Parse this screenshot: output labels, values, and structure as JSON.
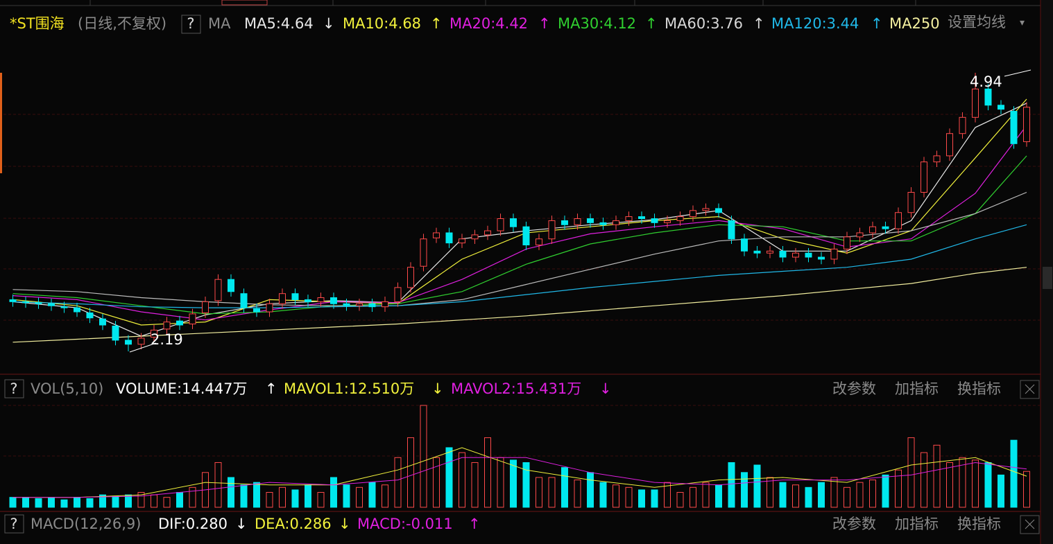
{
  "header": {
    "symbol": "*ST围海",
    "period": "(日线,不复权)",
    "help": "?",
    "indicator": "MA",
    "items": [
      {
        "label": "MA5:4.64",
        "trend": "↓"
      },
      {
        "label": "MA10:4.68",
        "trend": "↑"
      },
      {
        "label": "MA20:4.42",
        "trend": "↑"
      },
      {
        "label": "MA30:4.12",
        "trend": "↑"
      },
      {
        "label": "MA60:3.76",
        "trend": "↑"
      },
      {
        "label": "MA120:3.44",
        "trend": "↑"
      },
      {
        "label": "MA250"
      }
    ],
    "settings": "设置均线",
    "dropdown": "▾"
  },
  "volume_panel": {
    "help": "?",
    "indicator": "VOL(5,10)",
    "items": [
      {
        "label": "VOLUME:14.447万",
        "trend": "↑"
      },
      {
        "label": "MAVOL1:12.510万",
        "trend": "↓"
      },
      {
        "label": "MAVOL2:15.431万",
        "trend": "↓"
      }
    ],
    "buttons": [
      "改参数",
      "加指标",
      "换指标"
    ]
  },
  "macd_panel": {
    "help": "?",
    "indicator": "MACD(12,26,9)",
    "items": [
      {
        "label": "DIF:0.280",
        "trend": "↓"
      },
      {
        "label": "DEA:0.286",
        "trend": "↓"
      },
      {
        "label": "MACD:-0.011",
        "trend": "↑"
      }
    ],
    "buttons": [
      "改参数",
      "加指标",
      "换指标"
    ]
  },
  "chart_data": {
    "type": "candlestick",
    "up_color": "#ff4a4a",
    "down_color": "#00e8ee",
    "candles": {
      "open": [
        2.7,
        2.68,
        2.67,
        2.66,
        2.63,
        2.62,
        2.57,
        2.51,
        2.44,
        2.3,
        2.26,
        2.33,
        2.41,
        2.49,
        2.46,
        2.57,
        2.69,
        2.9,
        2.76,
        2.61,
        2.58,
        2.66,
        2.76,
        2.7,
        2.68,
        2.72,
        2.66,
        2.64,
        2.66,
        2.63,
        2.68,
        2.82,
        3.03,
        3.31,
        3.36,
        3.26,
        3.3,
        3.34,
        3.38,
        3.5,
        3.42,
        3.24,
        3.3,
        3.48,
        3.44,
        3.5,
        3.46,
        3.44,
        3.48,
        3.52,
        3.5,
        3.46,
        3.48,
        3.52,
        3.58,
        3.6,
        3.48,
        3.3,
        3.18,
        3.16,
        3.18,
        3.12,
        3.16,
        3.12,
        3.1,
        3.2,
        3.32,
        3.36,
        3.42,
        3.4,
        3.56,
        3.76,
        4.06,
        4.12,
        4.34,
        4.5,
        4.78,
        4.62,
        4.56,
        4.26
      ],
      "high": [
        2.75,
        2.73,
        2.72,
        2.71,
        2.68,
        2.67,
        2.62,
        2.56,
        2.49,
        2.35,
        2.37,
        2.45,
        2.53,
        2.54,
        2.61,
        2.73,
        2.95,
        2.95,
        2.81,
        2.66,
        2.71,
        2.81,
        2.81,
        2.75,
        2.77,
        2.77,
        2.71,
        2.71,
        2.71,
        2.73,
        2.87,
        3.07,
        3.35,
        3.41,
        3.41,
        3.35,
        3.39,
        3.43,
        3.55,
        3.55,
        3.47,
        3.35,
        3.53,
        3.53,
        3.55,
        3.55,
        3.51,
        3.53,
        3.57,
        3.57,
        3.55,
        3.53,
        3.57,
        3.63,
        3.65,
        3.65,
        3.53,
        3.35,
        3.23,
        3.23,
        3.23,
        3.21,
        3.21,
        3.17,
        3.25,
        3.37,
        3.41,
        3.47,
        3.47,
        3.61,
        3.81,
        4.11,
        4.17,
        4.39,
        4.55,
        4.94,
        4.83,
        4.67,
        4.61,
        4.65
      ],
      "low": [
        2.63,
        2.62,
        2.61,
        2.59,
        2.57,
        2.53,
        2.47,
        2.4,
        2.25,
        2.19,
        2.21,
        2.28,
        2.36,
        2.4,
        2.41,
        2.52,
        2.64,
        2.73,
        2.57,
        2.53,
        2.53,
        2.61,
        2.65,
        2.63,
        2.63,
        2.61,
        2.59,
        2.59,
        2.58,
        2.58,
        2.63,
        2.77,
        2.98,
        3.26,
        3.21,
        3.21,
        3.25,
        3.29,
        3.33,
        3.37,
        3.19,
        3.19,
        3.25,
        3.39,
        3.39,
        3.41,
        3.39,
        3.39,
        3.43,
        3.45,
        3.41,
        3.41,
        3.43,
        3.47,
        3.53,
        3.51,
        3.25,
        3.13,
        3.11,
        3.11,
        3.07,
        3.07,
        3.07,
        3.05,
        3.05,
        3.15,
        3.27,
        3.31,
        3.35,
        3.35,
        3.51,
        3.71,
        4.01,
        4.07,
        4.29,
        4.45,
        4.57,
        4.53,
        4.19,
        4.21
      ],
      "close": [
        2.68,
        2.67,
        2.66,
        2.64,
        2.62,
        2.58,
        2.52,
        2.45,
        2.3,
        2.26,
        2.32,
        2.4,
        2.48,
        2.45,
        2.56,
        2.68,
        2.9,
        2.78,
        2.62,
        2.58,
        2.66,
        2.76,
        2.7,
        2.68,
        2.72,
        2.66,
        2.64,
        2.66,
        2.63,
        2.68,
        2.82,
        3.02,
        3.3,
        3.36,
        3.26,
        3.3,
        3.34,
        3.38,
        3.5,
        3.42,
        3.24,
        3.3,
        3.48,
        3.44,
        3.5,
        3.46,
        3.44,
        3.48,
        3.52,
        3.5,
        3.46,
        3.48,
        3.52,
        3.58,
        3.6,
        3.56,
        3.3,
        3.18,
        3.16,
        3.18,
        3.12,
        3.16,
        3.12,
        3.1,
        3.2,
        3.32,
        3.36,
        3.42,
        3.4,
        3.56,
        3.76,
        4.06,
        4.12,
        4.34,
        4.5,
        4.78,
        4.62,
        4.58,
        4.24,
        4.6
      ]
    },
    "ma_x": [
      0,
      5,
      10,
      15,
      20,
      25,
      30,
      35,
      40,
      45,
      50,
      55,
      60,
      65,
      70,
      75,
      79
    ],
    "moving_averages": [
      {
        "color": "#e8e8e8",
        "values": [
          2.68,
          2.62,
          2.34,
          2.55,
          2.66,
          2.69,
          2.67,
          3.3,
          3.38,
          3.44,
          3.49,
          3.58,
          3.18,
          3.18,
          3.48,
          4.4,
          4.64
        ]
      },
      {
        "color": "#f2f23c",
        "values": [
          2.7,
          2.64,
          2.45,
          2.48,
          2.7,
          2.68,
          2.66,
          3.1,
          3.36,
          3.42,
          3.48,
          3.52,
          3.3,
          3.16,
          3.38,
          4.1,
          4.68
        ]
      },
      {
        "color": "#e020e0",
        "values": [
          2.74,
          2.7,
          2.58,
          2.5,
          2.6,
          2.68,
          2.67,
          2.9,
          3.2,
          3.35,
          3.42,
          3.48,
          3.4,
          3.22,
          3.3,
          3.75,
          4.42
        ]
      },
      {
        "color": "#30d030",
        "values": [
          2.76,
          2.72,
          2.64,
          2.56,
          2.58,
          2.64,
          2.66,
          2.78,
          3.05,
          3.25,
          3.36,
          3.44,
          3.42,
          3.28,
          3.28,
          3.55,
          4.12
        ]
      },
      {
        "color": "#bdbdbd",
        "values": [
          2.8,
          2.78,
          2.72,
          2.68,
          2.65,
          2.64,
          2.64,
          2.7,
          2.85,
          3.0,
          3.15,
          3.28,
          3.32,
          3.32,
          3.38,
          3.55,
          3.76
        ]
      },
      {
        "color": "#20b8e8",
        "values": [
          2.68,
          2.66,
          2.63,
          2.62,
          2.62,
          2.63,
          2.64,
          2.68,
          2.75,
          2.82,
          2.88,
          2.94,
          2.98,
          3.02,
          3.1,
          3.3,
          3.44
        ]
      },
      {
        "color": "#f4f0a0",
        "values": [
          2.28,
          2.31,
          2.34,
          2.37,
          2.4,
          2.43,
          2.46,
          2.5,
          2.54,
          2.59,
          2.64,
          2.69,
          2.74,
          2.8,
          2.86,
          2.96,
          3.02
        ]
      }
    ],
    "volume": {
      "values": [
        4,
        4,
        3.5,
        3.8,
        3,
        4,
        3.5,
        5,
        4.5,
        5,
        6,
        5,
        4,
        6,
        8,
        14,
        18,
        12,
        9,
        10,
        6,
        8,
        7,
        9,
        6,
        12,
        9,
        8,
        10,
        9,
        20,
        28,
        41,
        20,
        24,
        22,
        18,
        28,
        20,
        19,
        18,
        12,
        12,
        16,
        11,
        14,
        10,
        9,
        8,
        7,
        7,
        10,
        6,
        8,
        10,
        9,
        18,
        14,
        17,
        12,
        10,
        9,
        8,
        10,
        12,
        8,
        10,
        11,
        13,
        15,
        28,
        22,
        25,
        18,
        20,
        19,
        18,
        13,
        27,
        14.447
      ],
      "ma_lines": [
        {
          "color": "#f2f23c",
          "values": [
            4,
            4,
            5,
            10,
            9,
            9,
            15,
            24,
            15,
            11,
            8,
            11,
            12,
            10,
            17,
            20,
            12.51
          ]
        },
        {
          "color": "#e020e0",
          "values": [
            4,
            4,
            4.5,
            7,
            10,
            9,
            11,
            20,
            20,
            14,
            10,
            9,
            11,
            11,
            13,
            18,
            15.431
          ]
        }
      ]
    }
  }
}
